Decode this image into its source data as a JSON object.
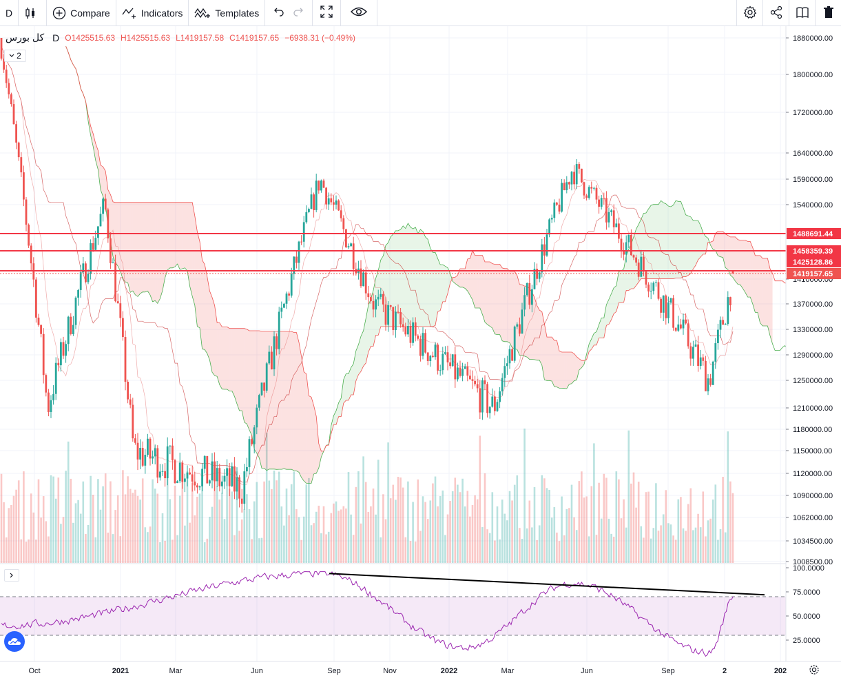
{
  "toolbar": {
    "interval": "D",
    "compare_label": "Compare",
    "indicators_label": "Indicators",
    "templates_label": "Templates",
    "left_icons": [
      "candlestick-icon",
      "plus-circle-icon",
      "indicators-icon",
      "templates-icon",
      "undo-icon",
      "redo-icon",
      "fullscreen-icon",
      "eye-icon"
    ],
    "right_icons": [
      "gear-icon",
      "share-icon",
      "layout-icon",
      "trash-icon"
    ]
  },
  "legend": {
    "symbol": "کل بورس",
    "interval": "D",
    "open": "O1425515.63",
    "high": "H1425515.63",
    "low": "L1419157.58",
    "close": "C1419157.65",
    "change": "−6938.31 (−0.49%)",
    "collapse_count": "2"
  },
  "chart_data": {
    "type": "candlestick",
    "x_ticks": [
      "Oct",
      "2021",
      "Mar",
      "Jun",
      "Sep",
      "Nov",
      "2022",
      "Mar",
      "Jun",
      "Sep",
      "2",
      "202"
    ],
    "y_ticks": [
      "1880000.00",
      "1800000.00",
      "1720000.00",
      "1640000.00",
      "1590000.00",
      "1540000.00",
      "1410000.00",
      "1370000.00",
      "1330000.00",
      "1290000.00",
      "1250000.00",
      "1210000.00",
      "1180000.00",
      "1150000.00",
      "1120000.00",
      "1090000.00",
      "1062000.00",
      "1034500.00",
      "1008500.00"
    ],
    "price_labels": [
      "1488691.44",
      "1458359.39",
      "1425128.86",
      "1419157.65"
    ],
    "key_points": [
      {
        "date": "Aug 2020",
        "close": 1880000
      },
      {
        "date": "Oct 2020",
        "close": 1210000
      },
      {
        "date": "Dec 2020",
        "close": 1540000
      },
      {
        "date": "Jan 2021",
        "close": 1150000
      },
      {
        "date": "May 2021",
        "close": 1100000
      },
      {
        "date": "Aug 2021",
        "close": 1590000
      },
      {
        "date": "Oct 2021",
        "close": 1370000
      },
      {
        "date": "Feb 2022",
        "close": 1210000
      },
      {
        "date": "May 2022",
        "close": 1610000
      },
      {
        "date": "Sep 2022",
        "close": 1330000
      },
      {
        "date": "Oct 2022",
        "close": 1250000
      },
      {
        "date": "Nov 2022",
        "close": 1419157.65
      }
    ],
    "rsi": {
      "y_ticks": [
        "100.0000",
        "75.0000",
        "50.0000",
        "25.0000"
      ],
      "overbought": 70,
      "oversold": 30,
      "key_points": [
        {
          "date": "Aug 2021",
          "value": 94
        },
        {
          "date": "Jan 2022",
          "value": 17
        },
        {
          "date": "May 2022",
          "value": 84
        },
        {
          "date": "Oct 2022",
          "value": 12
        },
        {
          "date": "Nov 2022",
          "value": 73
        }
      ]
    },
    "colors": {
      "up": "#26a69a",
      "down": "#ef5350",
      "cloud_up": "#4caf50",
      "cloud_down": "#ef5350",
      "rsi": "#9c27b0"
    }
  }
}
